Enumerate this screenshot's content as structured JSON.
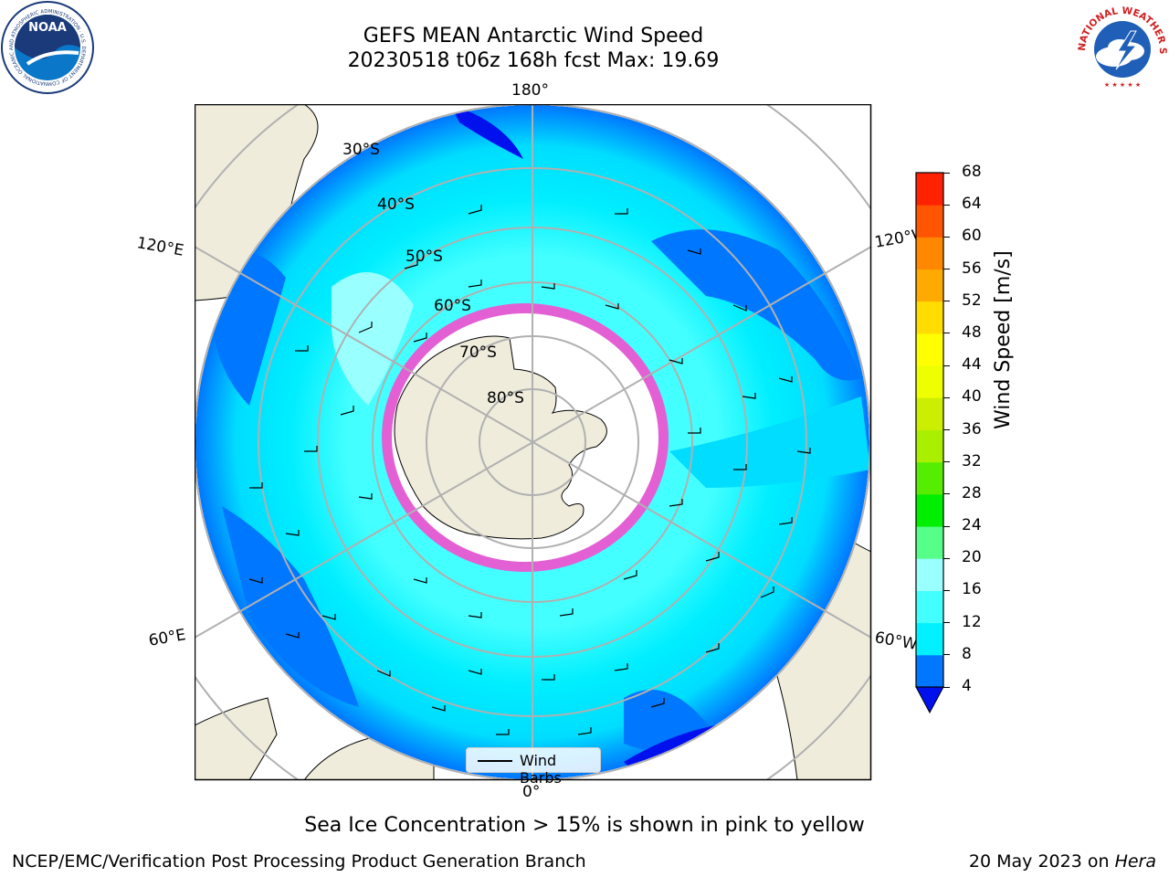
{
  "header": {
    "title_line1": "GEFS MEAN Antarctic Wind Speed",
    "title_line2": "20230518 t06z 168h fcst   Max: 19.69"
  },
  "logos": {
    "noaa": {
      "text": "NOAA",
      "ring_text": "NATIONAL OCEANIC AND ATMOSPHERIC ADMINISTRATION · U.S. DEPARTMENT OF COMMERCE"
    },
    "nws": {
      "ring_text": "NATIONAL WEATHER SERVICE"
    }
  },
  "map": {
    "longitude_labels": {
      "top": "180°",
      "bottom": "0°",
      "upper_left": "120°E",
      "upper_right": "120°W",
      "lower_left": "60°E",
      "lower_right": "60°W"
    },
    "latitude_labels": [
      "30°S",
      "40°S",
      "50°S",
      "60°S",
      "70°S",
      "80°S"
    ],
    "colors": {
      "land": "#efecdc",
      "ice_edge": "#ff44cc",
      "grid": "#b0b0b0"
    },
    "legend": {
      "label": "Wind Barbs"
    }
  },
  "colorbar": {
    "label": "Wind Speed [m/s]",
    "ticks": [
      "4",
      "8",
      "12",
      "16",
      "20",
      "24",
      "28",
      "32",
      "36",
      "40",
      "44",
      "48",
      "52",
      "56",
      "60",
      "64",
      "68"
    ],
    "colors": [
      "#0077ff",
      "#00f0ff",
      "#44ffff",
      "#99ffff",
      "#55ff88",
      "#00ee00",
      "#55ee00",
      "#aaee00",
      "#ccee00",
      "#eeff00",
      "#ffff00",
      "#ffdd00",
      "#ffaa00",
      "#ff8800",
      "#ff5500",
      "#ff2200"
    ],
    "extend_color": "#0011ee"
  },
  "caption": "Sea Ice Concentration > 15% is shown in pink to yellow",
  "footer": {
    "left": "NCEP/EMC/Verification Post Processing Product Generation Branch",
    "right_prefix": "20 May 2023 on",
    "right_machine": "Hera"
  }
}
